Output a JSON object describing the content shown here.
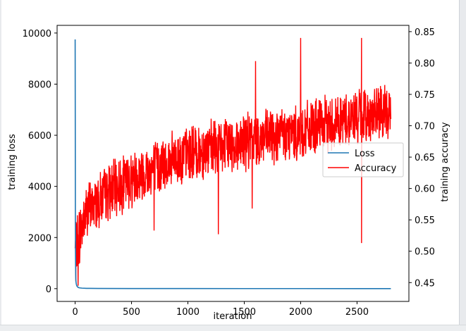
{
  "chart_data": {
    "type": "line",
    "x_axis": {
      "label": "iteration",
      "lim": [
        -160,
        2960
      ],
      "ticks": [
        0,
        500,
        1000,
        1500,
        2000,
        2500
      ]
    },
    "y_left_axis": {
      "label": "training loss",
      "lim": [
        -500,
        10300
      ],
      "ticks": [
        0,
        2000,
        4000,
        6000,
        8000,
        10000
      ]
    },
    "y_right_axis": {
      "label": "training accuracy",
      "lim": [
        0.42,
        0.86
      ],
      "ticks": [
        0.45,
        0.5,
        0.55,
        0.6,
        0.65,
        0.7,
        0.75,
        0.8,
        0.85
      ],
      "tick_labels": [
        "0.45",
        "0.50",
        "0.55",
        "0.60",
        "0.65",
        "0.70",
        "0.75",
        "0.80",
        "0.85"
      ]
    },
    "legend": {
      "placement": "center-right",
      "entries": [
        {
          "label": "Loss",
          "color": "#1f77b4"
        },
        {
          "label": "Accuracy",
          "color": "#ff0000"
        }
      ]
    },
    "series": [
      {
        "name": "Loss",
        "axis": "left",
        "color": "#1f77b4",
        "x": [
          0,
          1,
          2,
          3,
          4,
          5,
          6,
          8,
          10,
          13,
          16,
          20,
          25,
          30,
          40,
          60,
          100,
          200,
          500,
          1000,
          1500,
          2000,
          2500,
          2800
        ],
        "y": [
          9750,
          6800,
          3100,
          1500,
          900,
          560,
          380,
          250,
          190,
          130,
          100,
          75,
          55,
          42,
          30,
          20,
          12,
          8,
          5,
          4,
          3,
          3,
          2,
          2
        ]
      },
      {
        "name": "Accuracy",
        "axis": "right",
        "color": "#ff0000",
        "x_range": [
          0,
          2800
        ],
        "trend": [
          [
            0,
            0.5
          ],
          [
            100,
            0.565
          ],
          [
            300,
            0.595
          ],
          [
            600,
            0.625
          ],
          [
            1000,
            0.655
          ],
          [
            1500,
            0.675
          ],
          [
            2000,
            0.69
          ],
          [
            2500,
            0.715
          ],
          [
            2800,
            0.72
          ]
        ],
        "approx_min": 0.445,
        "approx_max": 0.842,
        "notable_spikes": [
          {
            "x": 5,
            "y": 0.452
          },
          {
            "x": 25,
            "y": 0.445
          },
          {
            "x": 1600,
            "y": 0.803
          },
          {
            "x": 2000,
            "y": 0.84
          },
          {
            "x": 2540,
            "y": 0.84
          },
          {
            "x": 2540,
            "y": 0.513
          },
          {
            "x": 1270,
            "y": 0.527
          },
          {
            "x": 1570,
            "y": 0.568
          },
          {
            "x": 700,
            "y": 0.533
          }
        ]
      }
    ]
  }
}
